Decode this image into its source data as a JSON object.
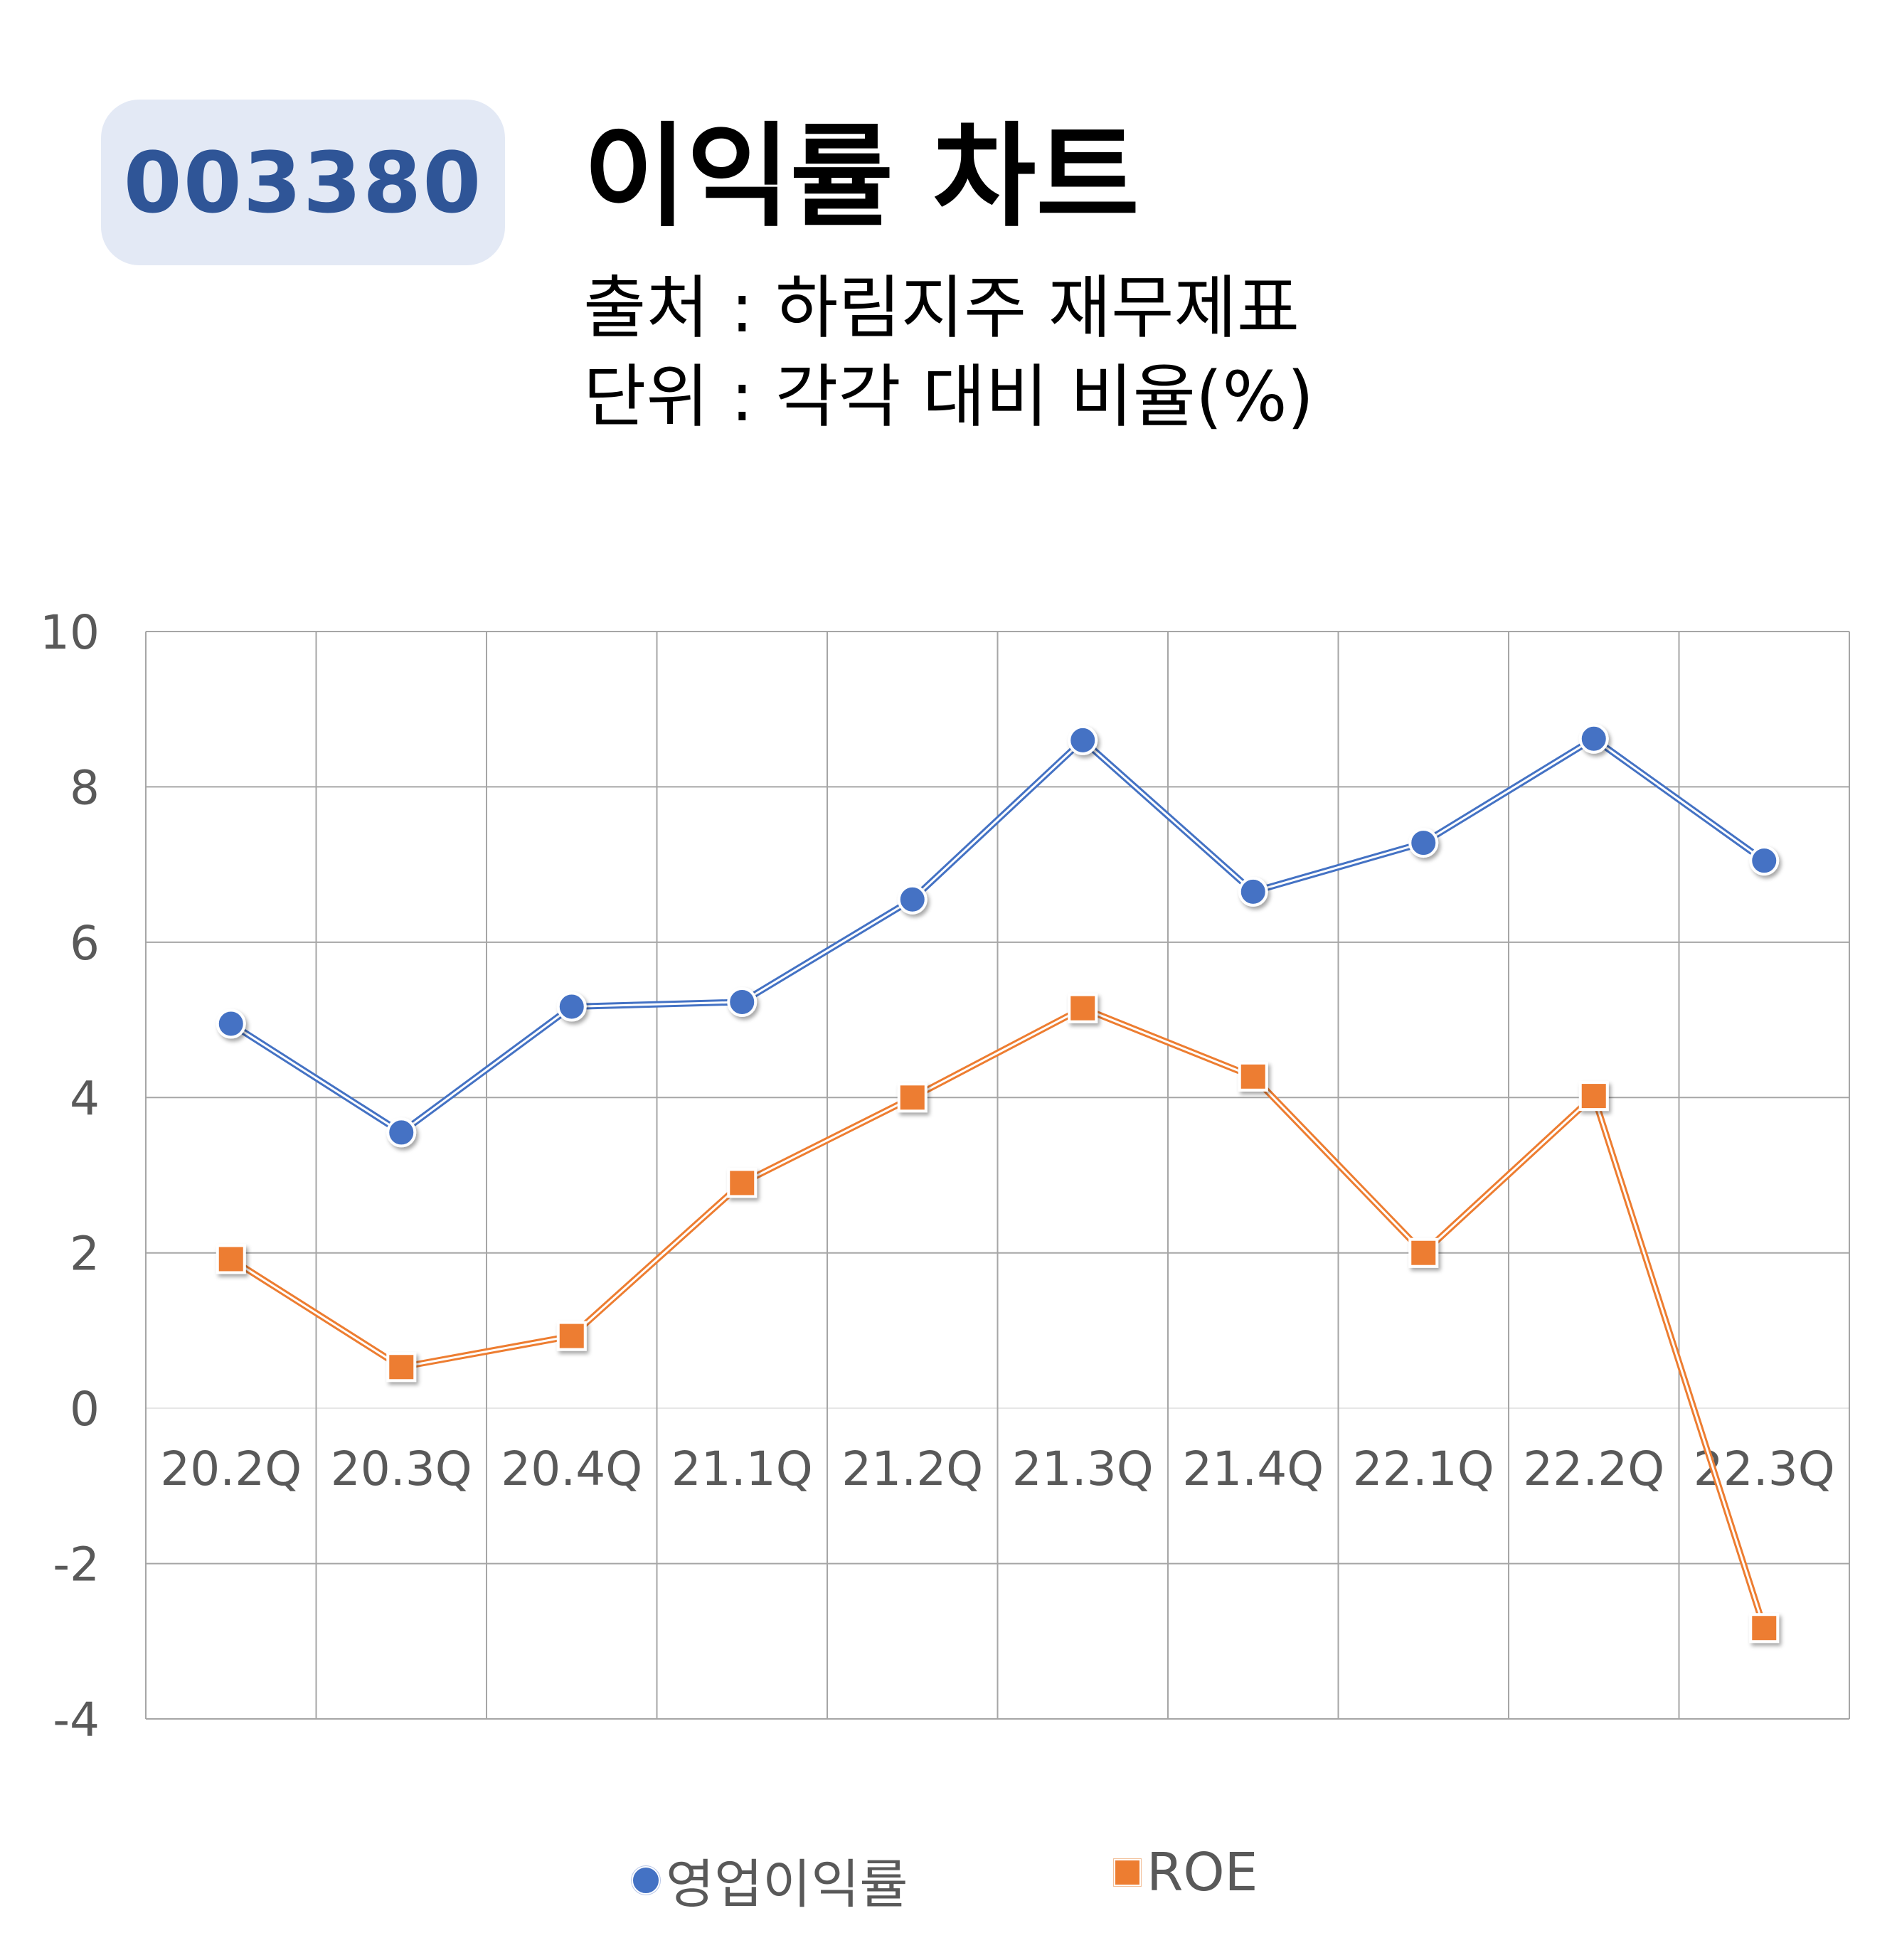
{
  "badge": {
    "code": "003380"
  },
  "header": {
    "title": "이익률 차트",
    "source": "출처 : 하림지주 재무제표",
    "unit": "단위 : 각각 대비 비율(%)"
  },
  "colors": {
    "badge_bg": "#e3e9f5",
    "badge_text": "#2f5597",
    "series_operating": "#4472c4",
    "series_roe": "#ed7d31",
    "grid": "#a6a6a6",
    "tick_text": "#595959"
  },
  "legend": {
    "items": [
      {
        "label": "영업이익률",
        "marker": "circle"
      },
      {
        "label": "ROE",
        "marker": "square"
      }
    ],
    "placement": "bottom"
  },
  "chart_data": {
    "type": "line",
    "title": "",
    "xlabel": "",
    "ylabel": "",
    "categories": [
      "20.2Q",
      "20.3Q",
      "20.4Q",
      "21.1Q",
      "21.2Q",
      "21.3Q",
      "21.4Q",
      "22.1Q",
      "22.2Q",
      "22.3Q"
    ],
    "ylim": [
      -4,
      10
    ],
    "yticks": [
      "10",
      "8",
      "6",
      "4",
      "2",
      "0",
      "-2",
      "-4"
    ],
    "ytick_values": [
      10,
      8,
      6,
      4,
      2,
      0,
      -2,
      -4
    ],
    "grid": true,
    "series": [
      {
        "name": "영업이익률",
        "marker": "circle",
        "values": [
          4.95,
          3.55,
          5.17,
          5.23,
          6.55,
          8.6,
          6.65,
          7.28,
          8.62,
          7.05
        ]
      },
      {
        "name": "ROE",
        "marker": "square",
        "values": [
          1.92,
          0.53,
          0.93,
          2.9,
          4.0,
          5.15,
          4.27,
          2.0,
          4.02,
          -2.83
        ]
      }
    ]
  }
}
